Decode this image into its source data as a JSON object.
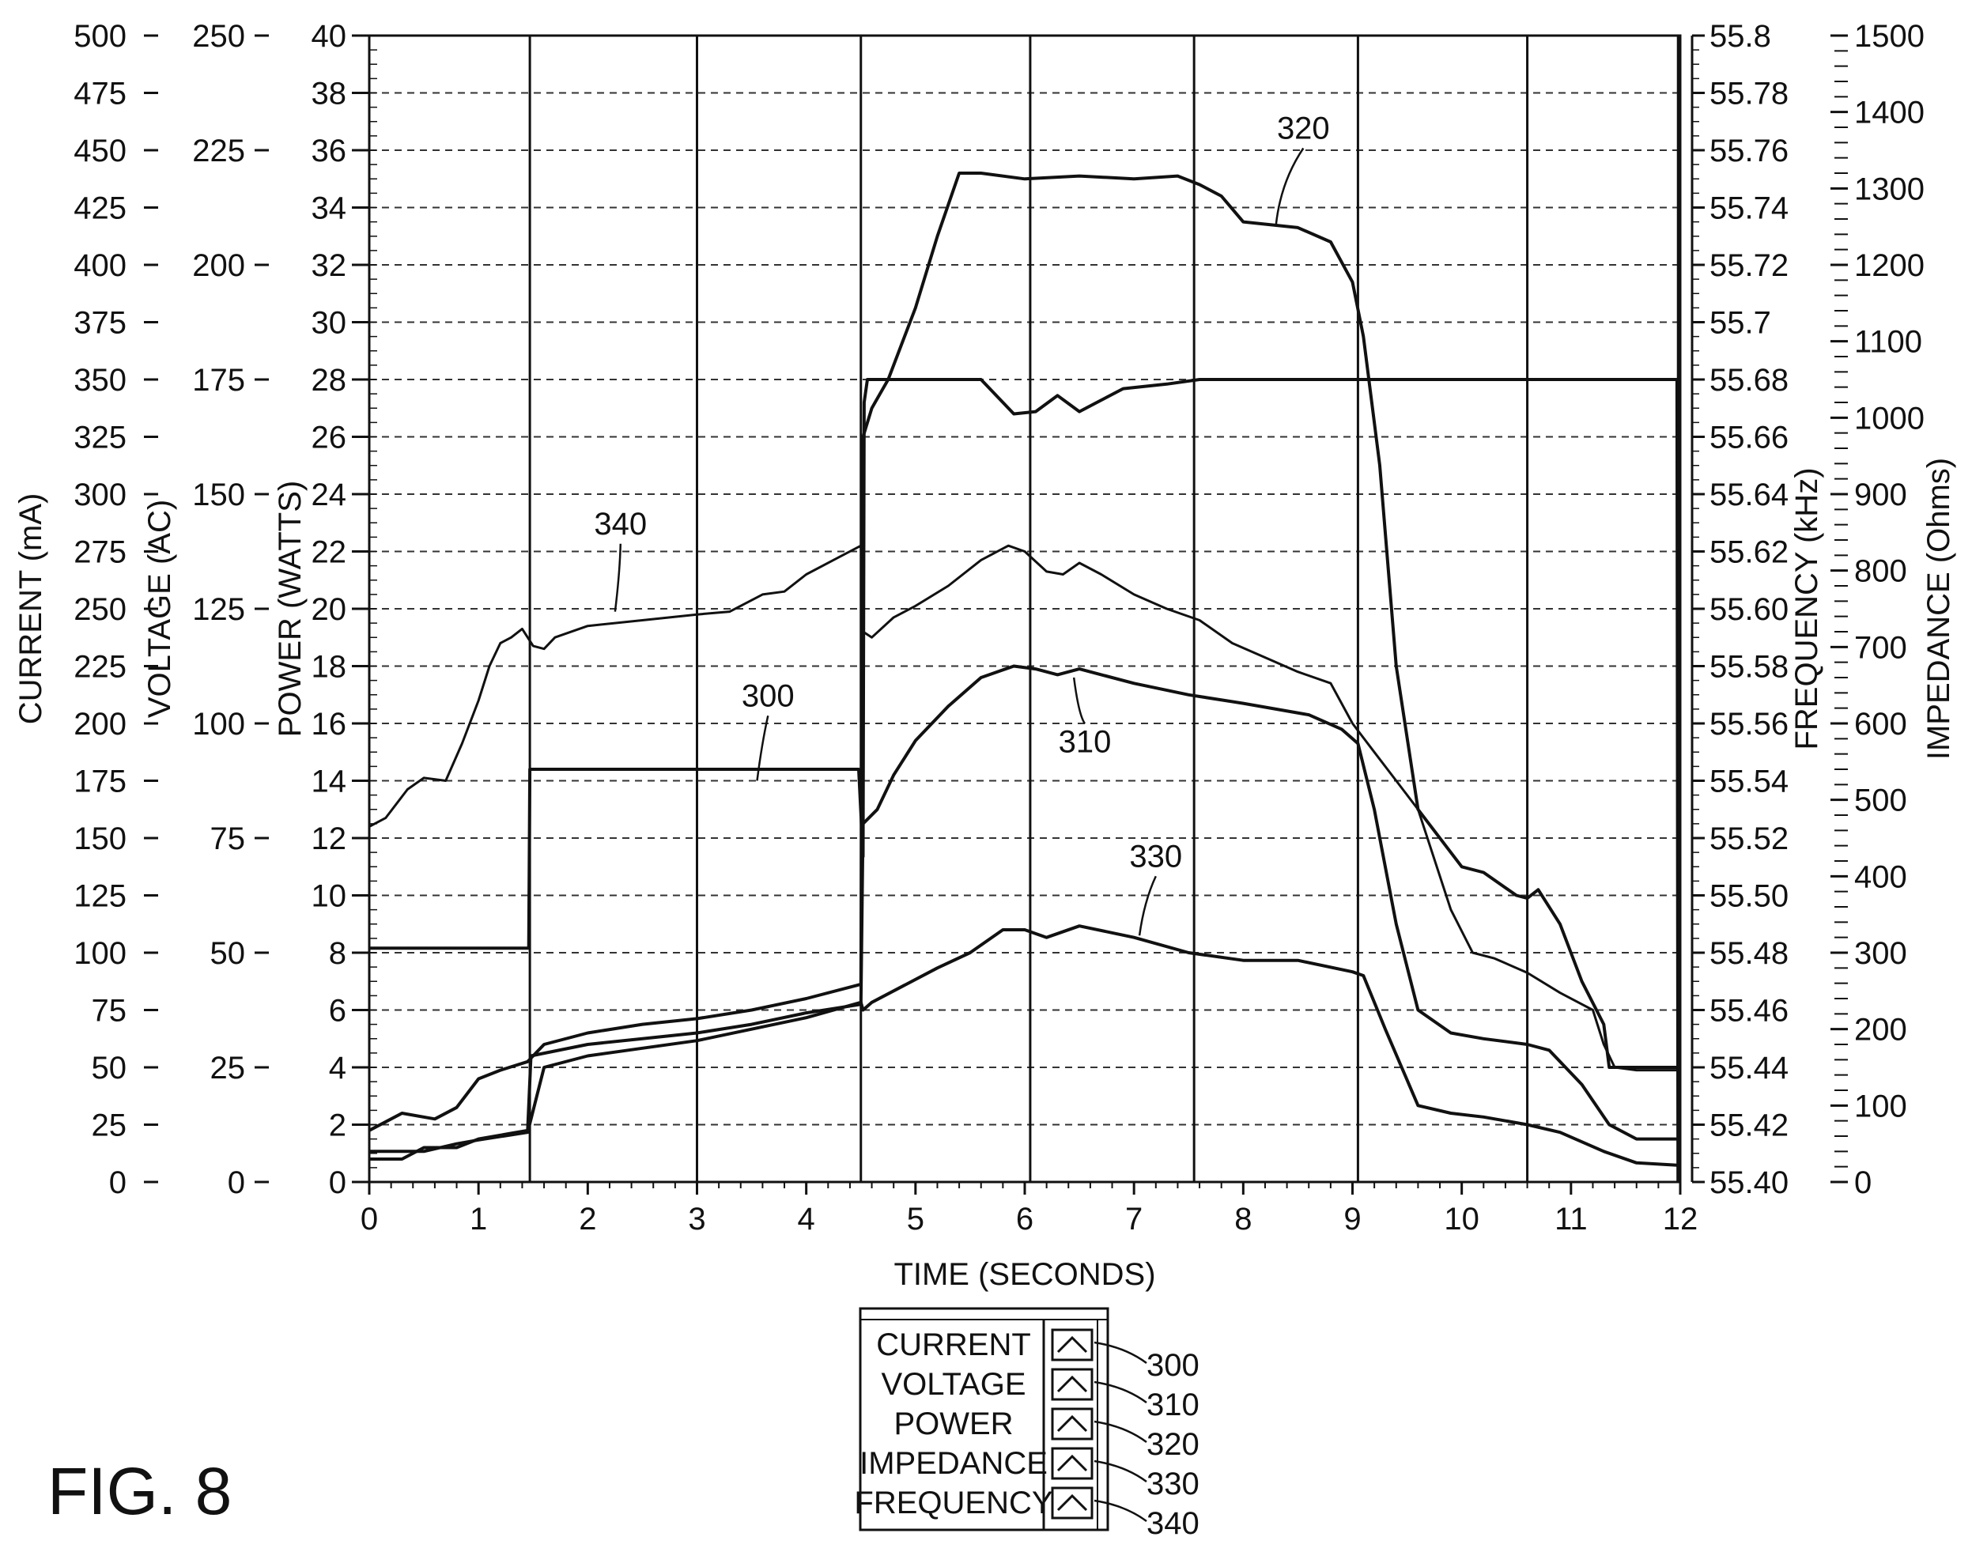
{
  "figure_label": "FIG. 8",
  "chart_data": {
    "type": "line",
    "xlabel": "TIME (SECONDS)",
    "xlim": [
      0,
      12
    ],
    "x_ticks": [
      "0",
      "1",
      "2",
      "3",
      "4",
      "5",
      "6",
      "7",
      "8",
      "9",
      "10",
      "11",
      "12"
    ],
    "y_axes": [
      {
        "id": "current",
        "label": "CURRENT (mA)",
        "range": [
          0,
          500
        ],
        "ticks": [
          "0",
          "25",
          "50",
          "75",
          "100",
          "125",
          "150",
          "175",
          "200",
          "225",
          "250",
          "275",
          "300",
          "325",
          "350",
          "375",
          "400",
          "425",
          "450",
          "475",
          "500"
        ]
      },
      {
        "id": "voltage",
        "label": "VOLTAGE (AC)",
        "range": [
          0,
          250
        ],
        "ticks": [
          "0",
          "25",
          "50",
          "75",
          "100",
          "125",
          "150",
          "175",
          "200",
          "225",
          "250"
        ]
      },
      {
        "id": "power",
        "label": "POWER (WATTS)",
        "range": [
          0,
          40
        ],
        "ticks": [
          "0",
          "2",
          "4",
          "6",
          "8",
          "10",
          "12",
          "14",
          "16",
          "18",
          "20",
          "22",
          "24",
          "26",
          "28",
          "30",
          "32",
          "34",
          "36",
          "38",
          "40"
        ]
      },
      {
        "id": "frequency",
        "label": "FREQUENCY (kHz)",
        "range": [
          55.4,
          55.8
        ],
        "ticks": [
          "55.40",
          "55.42",
          "55.44",
          "55.46",
          "55.48",
          "55.50",
          "55.52",
          "55.54",
          "55.56",
          "55.58",
          "55.60",
          "55.62",
          "55.64",
          "55.66",
          "55.68",
          "55.7",
          "55.72",
          "55.74",
          "55.76",
          "55.78",
          "55.8"
        ]
      },
      {
        "id": "impedance",
        "label": "IMPEDANCE (Ohms)",
        "range": [
          0,
          1500
        ],
        "ticks": [
          "0",
          "100",
          "200",
          "300",
          "400",
          "500",
          "600",
          "700",
          "800",
          "900",
          "1000",
          "1100",
          "1200",
          "1300",
          "1400",
          "1500"
        ]
      }
    ],
    "grid": "dashed-horizontal",
    "vertical_markers": [
      1.47,
      3.0,
      4.5,
      6.05,
      7.55,
      9.05,
      10.6,
      11.98
    ],
    "series": [
      {
        "name": "CURRENT",
        "ref": "300",
        "axis": "current",
        "width": 4,
        "points": [
          [
            0,
            102
          ],
          [
            1.46,
            102
          ],
          [
            1.47,
            180
          ],
          [
            3.0,
            180
          ],
          [
            4.48,
            180
          ],
          [
            4.52,
            142
          ],
          [
            4.53,
            340
          ],
          [
            4.56,
            350
          ],
          [
            5.6,
            350
          ],
          [
            5.9,
            335
          ],
          [
            6.1,
            336
          ],
          [
            6.3,
            343
          ],
          [
            6.5,
            336
          ],
          [
            6.9,
            346
          ],
          [
            7.3,
            348
          ],
          [
            7.6,
            350
          ],
          [
            9.0,
            350
          ],
          [
            10.6,
            350
          ],
          [
            11.97,
            350
          ],
          [
            11.98,
            0
          ]
        ]
      },
      {
        "name": "VOLTAGE",
        "ref": "310",
        "axis": "power",
        "width": 4,
        "points": [
          [
            0,
            0.8
          ],
          [
            0.3,
            0.8
          ],
          [
            0.5,
            1.2
          ],
          [
            0.8,
            1.2
          ],
          [
            1.0,
            1.5
          ],
          [
            1.3,
            1.7
          ],
          [
            1.45,
            1.8
          ],
          [
            1.48,
            4.4
          ],
          [
            2.0,
            4.8
          ],
          [
            2.5,
            5.0
          ],
          [
            3.0,
            5.2
          ],
          [
            3.5,
            5.5
          ],
          [
            4.0,
            5.9
          ],
          [
            4.5,
            6.2
          ],
          [
            4.52,
            12.5
          ],
          [
            4.65,
            13.0
          ],
          [
            4.8,
            14.2
          ],
          [
            5.0,
            15.4
          ],
          [
            5.3,
            16.6
          ],
          [
            5.6,
            17.6
          ],
          [
            5.9,
            18.0
          ],
          [
            6.1,
            17.9
          ],
          [
            6.3,
            17.7
          ],
          [
            6.5,
            17.9
          ],
          [
            7.0,
            17.4
          ],
          [
            7.5,
            17.0
          ],
          [
            8.0,
            16.7
          ],
          [
            8.3,
            16.5
          ],
          [
            8.6,
            16.3
          ],
          [
            8.9,
            15.8
          ],
          [
            9.05,
            15.3
          ],
          [
            9.2,
            13.0
          ],
          [
            9.4,
            9.0
          ],
          [
            9.6,
            6.0
          ],
          [
            9.9,
            5.2
          ],
          [
            10.2,
            5.0
          ],
          [
            10.6,
            4.8
          ],
          [
            10.8,
            4.6
          ],
          [
            11.1,
            3.4
          ],
          [
            11.35,
            2.0
          ],
          [
            11.6,
            1.5
          ],
          [
            11.97,
            1.5
          ]
        ]
      },
      {
        "name": "POWER",
        "ref": "320",
        "axis": "power",
        "width": 4,
        "points": [
          [
            0,
            1.8
          ],
          [
            0.3,
            2.4
          ],
          [
            0.6,
            2.2
          ],
          [
            0.8,
            2.6
          ],
          [
            1.0,
            3.6
          ],
          [
            1.2,
            3.9
          ],
          [
            1.45,
            4.2
          ],
          [
            1.6,
            4.8
          ],
          [
            2.0,
            5.2
          ],
          [
            2.5,
            5.5
          ],
          [
            3.0,
            5.7
          ],
          [
            3.5,
            6.0
          ],
          [
            4.0,
            6.4
          ],
          [
            4.5,
            6.9
          ],
          [
            4.52,
            26.0
          ],
          [
            4.6,
            27.0
          ],
          [
            4.75,
            28.0
          ],
          [
            5.0,
            30.5
          ],
          [
            5.2,
            33.0
          ],
          [
            5.4,
            35.2
          ],
          [
            5.6,
            35.2
          ],
          [
            6.0,
            35.0
          ],
          [
            6.5,
            35.1
          ],
          [
            7.0,
            35.0
          ],
          [
            7.4,
            35.1
          ],
          [
            7.6,
            34.8
          ],
          [
            7.8,
            34.4
          ],
          [
            8.0,
            33.5
          ],
          [
            8.5,
            33.3
          ],
          [
            8.8,
            32.8
          ],
          [
            9.0,
            31.4
          ],
          [
            9.1,
            29.5
          ],
          [
            9.25,
            25.0
          ],
          [
            9.4,
            18.0
          ],
          [
            9.6,
            13.0
          ],
          [
            10.0,
            11.0
          ],
          [
            10.2,
            10.8
          ],
          [
            10.5,
            10.0
          ],
          [
            10.6,
            9.9
          ],
          [
            10.7,
            10.2
          ],
          [
            10.9,
            9.0
          ],
          [
            11.1,
            7.0
          ],
          [
            11.3,
            5.5
          ],
          [
            11.35,
            4.0
          ],
          [
            11.6,
            4.0
          ],
          [
            11.97,
            4.0
          ]
        ]
      },
      {
        "name": "IMPEDANCE",
        "ref": "330",
        "axis": "impedance",
        "width": 4,
        "points": [
          [
            0,
            40
          ],
          [
            0.5,
            40
          ],
          [
            0.8,
            50
          ],
          [
            1.0,
            55
          ],
          [
            1.45,
            65
          ],
          [
            1.6,
            150
          ],
          [
            2.0,
            165
          ],
          [
            2.5,
            175
          ],
          [
            3.0,
            185
          ],
          [
            3.5,
            200
          ],
          [
            4.0,
            215
          ],
          [
            4.5,
            235
          ],
          [
            4.52,
            225
          ],
          [
            4.6,
            235
          ],
          [
            4.8,
            250
          ],
          [
            5.2,
            280
          ],
          [
            5.5,
            300
          ],
          [
            5.8,
            330
          ],
          [
            6.0,
            330
          ],
          [
            6.2,
            320
          ],
          [
            6.5,
            335
          ],
          [
            7.0,
            320
          ],
          [
            7.5,
            300
          ],
          [
            8.0,
            290
          ],
          [
            8.5,
            290
          ],
          [
            9.0,
            275
          ],
          [
            9.1,
            270
          ],
          [
            9.3,
            200
          ],
          [
            9.6,
            100
          ],
          [
            9.9,
            90
          ],
          [
            10.2,
            85
          ],
          [
            10.6,
            75
          ],
          [
            10.9,
            65
          ],
          [
            11.3,
            40
          ],
          [
            11.6,
            25
          ],
          [
            11.97,
            22
          ]
        ]
      },
      {
        "name": "FREQUENCY",
        "ref": "340",
        "axis": "frequency",
        "width": 3,
        "points": [
          [
            0,
            55.524
          ],
          [
            0.15,
            55.527
          ],
          [
            0.35,
            55.537
          ],
          [
            0.5,
            55.541
          ],
          [
            0.7,
            55.54
          ],
          [
            0.85,
            55.553
          ],
          [
            1.0,
            55.568
          ],
          [
            1.1,
            55.58
          ],
          [
            1.2,
            55.588
          ],
          [
            1.3,
            55.59
          ],
          [
            1.4,
            55.593
          ],
          [
            1.5,
            55.587
          ],
          [
            1.6,
            55.586
          ],
          [
            1.7,
            55.59
          ],
          [
            2.0,
            55.594
          ],
          [
            2.5,
            55.596
          ],
          [
            3.0,
            55.598
          ],
          [
            3.3,
            55.599
          ],
          [
            3.6,
            55.605
          ],
          [
            3.8,
            55.606
          ],
          [
            4.0,
            55.612
          ],
          [
            4.3,
            55.618
          ],
          [
            4.5,
            55.622
          ],
          [
            4.52,
            55.592
          ],
          [
            4.6,
            55.59
          ],
          [
            4.8,
            55.597
          ],
          [
            5.0,
            55.601
          ],
          [
            5.3,
            55.608
          ],
          [
            5.6,
            55.617
          ],
          [
            5.85,
            55.622
          ],
          [
            6.0,
            55.62
          ],
          [
            6.2,
            55.613
          ],
          [
            6.35,
            55.612
          ],
          [
            6.5,
            55.616
          ],
          [
            6.7,
            55.612
          ],
          [
            7.0,
            55.605
          ],
          [
            7.3,
            55.6
          ],
          [
            7.6,
            55.596
          ],
          [
            7.9,
            55.588
          ],
          [
            8.2,
            55.583
          ],
          [
            8.5,
            55.578
          ],
          [
            8.8,
            55.574
          ],
          [
            9.0,
            55.56
          ],
          [
            9.2,
            55.55
          ],
          [
            9.4,
            55.54
          ],
          [
            9.6,
            55.53
          ],
          [
            9.9,
            55.495
          ],
          [
            10.1,
            55.48
          ],
          [
            10.3,
            55.478
          ],
          [
            10.6,
            55.473
          ],
          [
            10.9,
            55.466
          ],
          [
            11.2,
            55.46
          ],
          [
            11.3,
            55.448
          ],
          [
            11.4,
            55.44
          ],
          [
            11.6,
            55.439
          ],
          [
            11.97,
            55.439
          ]
        ]
      }
    ],
    "annotations": [
      {
        "text": "300",
        "at": [
          3.55,
          14.0
        ],
        "label_at": [
          3.65,
          16.6
        ]
      },
      {
        "text": "310",
        "at": [
          6.45,
          17.6
        ],
        "label_at": [
          6.55,
          15.0
        ]
      },
      {
        "text": "320",
        "at": [
          8.3,
          33.4
        ],
        "label_at": [
          8.55,
          36.4
        ]
      },
      {
        "text": "330",
        "at": [
          7.05,
          8.6
        ],
        "label_at": [
          7.2,
          11.0
        ]
      },
      {
        "text": "340",
        "at": [
          2.25,
          19.9
        ],
        "label_at": [
          2.3,
          22.6
        ]
      }
    ],
    "legend": {
      "position": "bottom-center",
      "entries": [
        {
          "label": "CURRENT",
          "ref": "300"
        },
        {
          "label": "VOLTAGE",
          "ref": "310"
        },
        {
          "label": "POWER",
          "ref": "320"
        },
        {
          "label": "IMPEDANCE",
          "ref": "330"
        },
        {
          "label": "FREQUENCY",
          "ref": "340"
        }
      ]
    }
  }
}
